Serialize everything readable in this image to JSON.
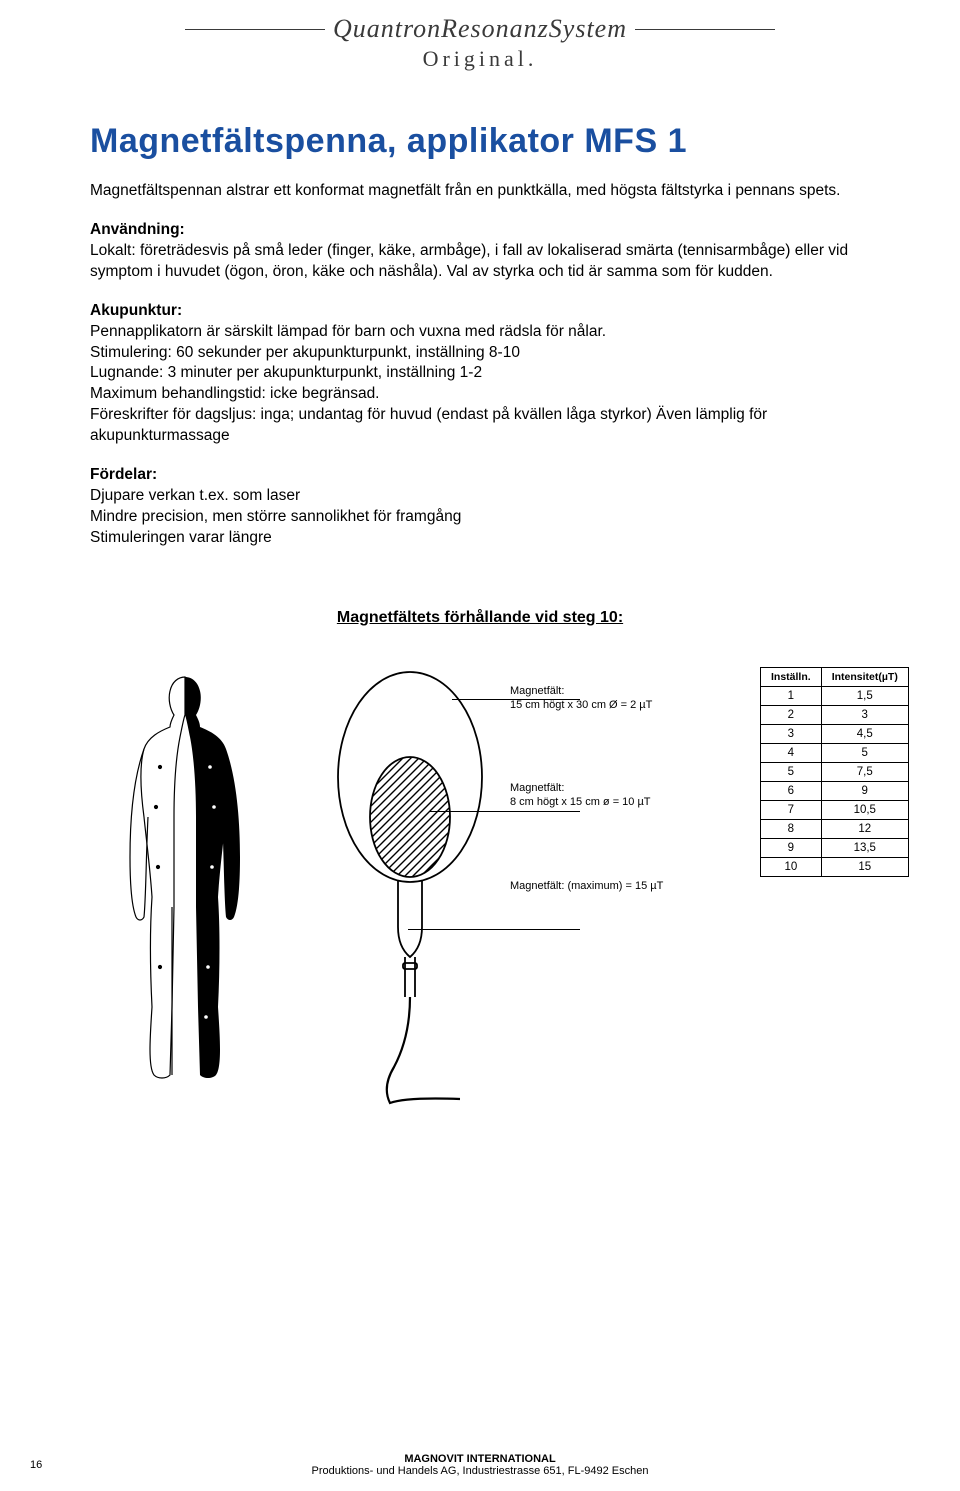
{
  "brand": {
    "line1": "QuantronResonanzSystem",
    "line2": "Original."
  },
  "title": "Magnetfältspenna, applikator MFS 1",
  "intro": "Magnetfältspennan alstrar ett konformat magnetfält från en punktkälla, med högsta fältstyrka i pennans spets.",
  "usage": {
    "heading": "Användning:",
    "text": "Lokalt: företrädesvis på små leder (finger, käke, armbåge), i fall av lokaliserad smärta (tennisarmbåge) eller vid symptom i huvudet (ögon, öron, käke och näshåla). Val av styrka och tid är samma som för kudden."
  },
  "aku": {
    "heading": "Akupunktur:",
    "l1": "Pennapplikatorn är särskilt lämpad för barn och vuxna med rädsla för nålar.",
    "l2": "Stimulering: 60 sekunder per akupunkturpunkt, inställning 8-10",
    "l3": "Lugnande: 3 minuter per akupunkturpunkt, inställning 1-2",
    "l4": "Maximum behandlingstid: icke begränsad.",
    "l5": "Föreskrifter för dagsljus: inga; undantag för huvud (endast på kvällen låga styrkor) Även lämplig för akupunkturmassage"
  },
  "adv": {
    "heading": "Fördelar:",
    "l1": "Djupare verkan t.ex. som laser",
    "l2": "Mindre precision, men större sannolikhet för framgång",
    "l3": "Stimuleringen varar längre"
  },
  "sectionHeading": "Magnetfältets förhållande vid steg 10:",
  "labels": {
    "outer": {
      "title": "Magnetfält:",
      "text": "15 cm högt x 30 cm Ø = 2 µT"
    },
    "inner": {
      "title": "Magnetfält:",
      "text": "8 cm högt x 15 cm ø = 10 µT"
    },
    "max": {
      "title": "Magnetfält: (maximum) = 15 µT"
    }
  },
  "table": {
    "h1": "Inställn.",
    "h2": "Intensitet(µT)",
    "rows": [
      [
        "1",
        "1,5"
      ],
      [
        "2",
        "3"
      ],
      [
        "3",
        "4,5"
      ],
      [
        "4",
        "5"
      ],
      [
        "5",
        "7,5"
      ],
      [
        "6",
        "9"
      ],
      [
        "7",
        "10,5"
      ],
      [
        "8",
        "12"
      ],
      [
        "9",
        "13,5"
      ],
      [
        "10",
        "15"
      ]
    ]
  },
  "footer": {
    "l1": "MAGNOVIT INTERNATIONAL",
    "l2": "Produktions- und Handels AG, Industriestrasse 651, FL-9492 Eschen"
  },
  "pageNum": "16",
  "colors": {
    "title": "#1a4fa0",
    "text": "#000000",
    "brand": "#3a3a3a"
  }
}
